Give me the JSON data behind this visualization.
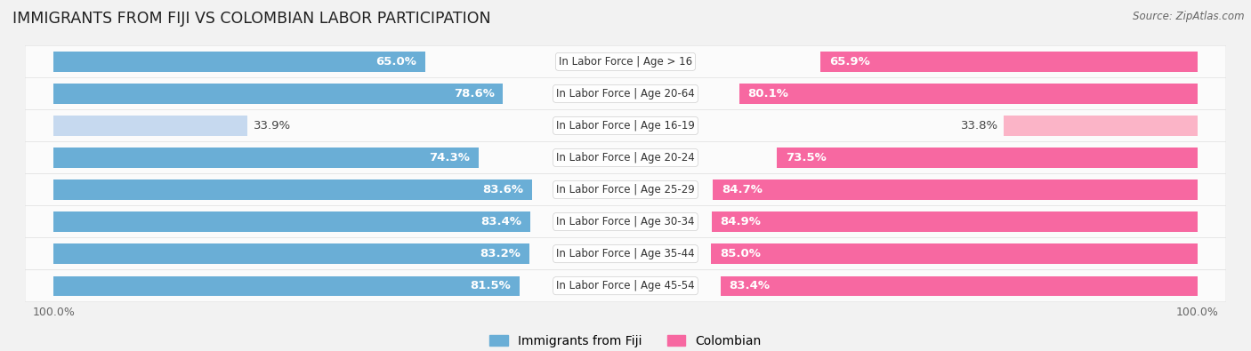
{
  "title": "IMMIGRANTS FROM FIJI VS COLOMBIAN LABOR PARTICIPATION",
  "source": "Source: ZipAtlas.com",
  "categories": [
    "In Labor Force | Age > 16",
    "In Labor Force | Age 20-64",
    "In Labor Force | Age 16-19",
    "In Labor Force | Age 20-24",
    "In Labor Force | Age 25-29",
    "In Labor Force | Age 30-34",
    "In Labor Force | Age 35-44",
    "In Labor Force | Age 45-54"
  ],
  "fiji_values": [
    65.0,
    78.6,
    33.9,
    74.3,
    83.6,
    83.4,
    83.2,
    81.5
  ],
  "colombian_values": [
    65.9,
    80.1,
    33.8,
    73.5,
    84.7,
    84.9,
    85.0,
    83.4
  ],
  "fiji_color": "#6aaed6",
  "fiji_color_light": "#c6d9ef",
  "colombian_color": "#f768a1",
  "colombian_color_light": "#fbb4c7",
  "bg_color": "#f2f2f2",
  "row_bg_odd": "#ebebeb",
  "row_bg_even": "#f8f8f8",
  "bar_height": 0.62,
  "x_max": 100.0,
  "label_fontsize": 9.5,
  "title_fontsize": 12.5,
  "source_fontsize": 8.5,
  "legend_fontsize": 10,
  "category_fontsize": 8.5,
  "light_threshold": 50.0
}
